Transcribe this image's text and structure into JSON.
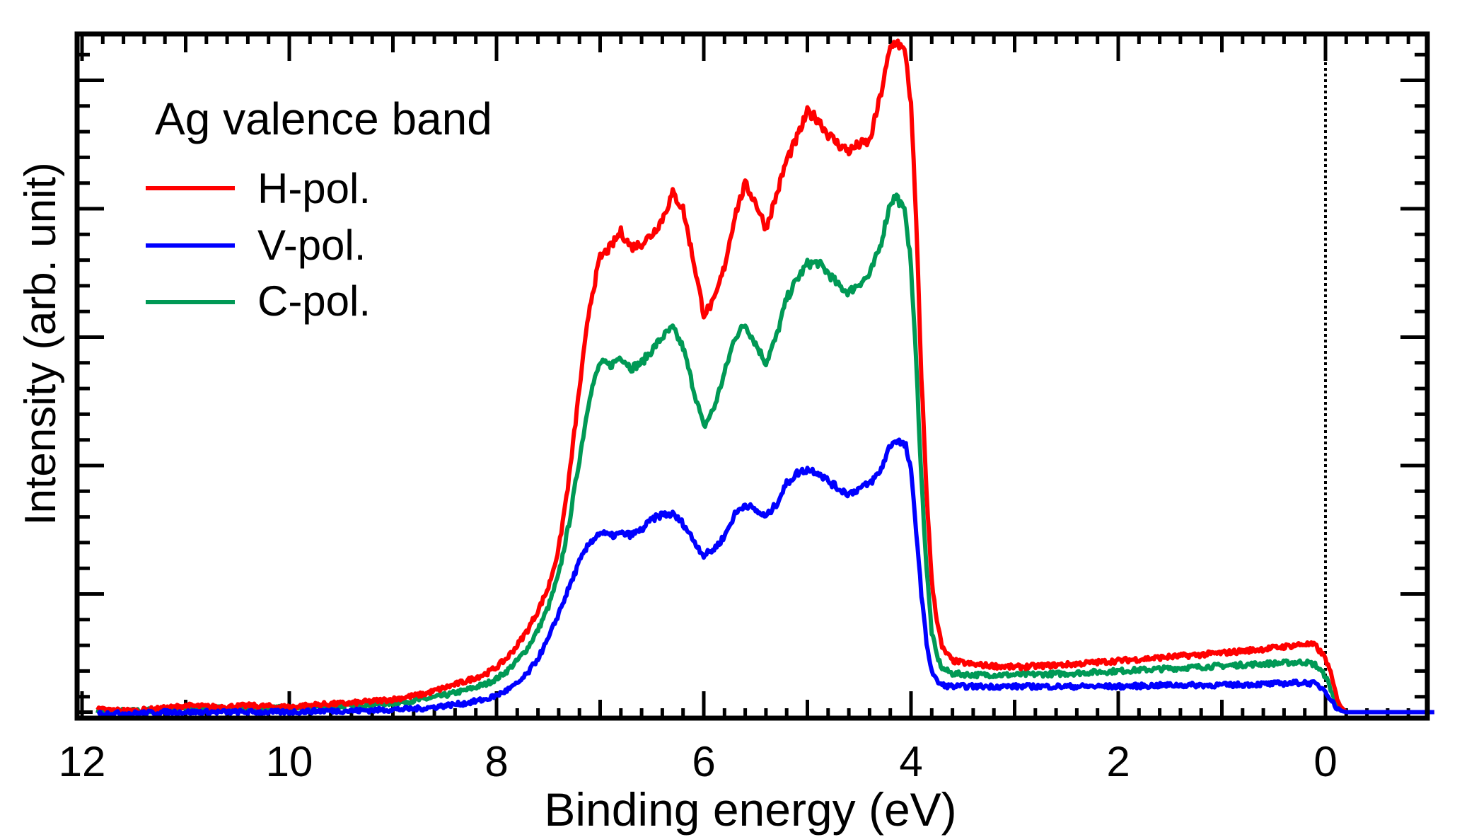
{
  "chart_data": {
    "type": "line",
    "title": "Ag valence band",
    "xlabel": "Binding energy (eV)",
    "ylabel": "Intensity (arb. unit)",
    "xlim": [
      12.05,
      -1.13
    ],
    "ylim": [
      0,
      5.37
    ],
    "x_reversed": true,
    "x_ticks": [
      12,
      10,
      8,
      6,
      4,
      2,
      0
    ],
    "x_tick_labels": [
      "12",
      "10",
      "8",
      "6",
      "4",
      "2",
      "0"
    ],
    "x_minor_step": 0.2,
    "x_mid_step": 1,
    "y_major_ticks": [
      1,
      2,
      3,
      4,
      5
    ],
    "y_minor_step": 0.2,
    "y_tick_labels_shown": false,
    "grid": false,
    "fermi_level_marker": 0,
    "legend": {
      "title": "Ag valence band",
      "placement": "top-left"
    },
    "series": [
      {
        "name": "H-pol.",
        "color": "#ff0000",
        "x": [
          11.85,
          11.5,
          11.2,
          11.0,
          10.7,
          10.4,
          10.0,
          9.7,
          9.4,
          9.0,
          8.7,
          8.5,
          8.3,
          8.1,
          8.0,
          7.9,
          7.8,
          7.7,
          7.6,
          7.5,
          7.4,
          7.3,
          7.2,
          7.1,
          7.0,
          6.9,
          6.8,
          6.7,
          6.6,
          6.5,
          6.4,
          6.3,
          6.2,
          6.1,
          6.0,
          5.9,
          5.8,
          5.7,
          5.6,
          5.5,
          5.4,
          5.3,
          5.2,
          5.1,
          5.0,
          4.9,
          4.8,
          4.7,
          4.6,
          4.5,
          4.4,
          4.3,
          4.2,
          4.14,
          4.05,
          4.0,
          3.95,
          3.9,
          3.85,
          3.8,
          3.75,
          3.7,
          3.6,
          3.4,
          3.0,
          2.5,
          2.0,
          1.5,
          1.0,
          0.5,
          0.2,
          0.1,
          0.0,
          -0.05,
          -0.1,
          -0.15,
          -0.2,
          -0.5,
          -1.05
        ],
        "y": [
          0.1,
          0.09,
          0.11,
          0.13,
          0.12,
          0.13,
          0.12,
          0.14,
          0.15,
          0.18,
          0.22,
          0.27,
          0.32,
          0.38,
          0.43,
          0.5,
          0.6,
          0.72,
          0.87,
          1.05,
          1.35,
          1.9,
          2.6,
          3.25,
          3.62,
          3.7,
          3.82,
          3.7,
          3.73,
          3.8,
          3.92,
          4.12,
          4.0,
          3.6,
          3.18,
          3.28,
          3.55,
          3.95,
          4.19,
          4.05,
          3.85,
          4.1,
          4.38,
          4.55,
          4.75,
          4.7,
          4.58,
          4.5,
          4.45,
          4.5,
          4.52,
          4.86,
          5.25,
          5.31,
          5.2,
          4.8,
          3.9,
          2.7,
          1.8,
          1.1,
          0.8,
          0.58,
          0.48,
          0.45,
          0.43,
          0.45,
          0.48,
          0.51,
          0.54,
          0.58,
          0.61,
          0.6,
          0.5,
          0.38,
          0.22,
          0.12,
          0.08,
          0.08,
          0.08
        ]
      },
      {
        "name": "V-pol.",
        "color": "#0000ff",
        "x": [
          11.85,
          11.5,
          11.2,
          11.0,
          10.7,
          10.4,
          10.0,
          9.7,
          9.4,
          9.0,
          8.7,
          8.5,
          8.3,
          8.1,
          8.0,
          7.9,
          7.8,
          7.7,
          7.6,
          7.5,
          7.4,
          7.3,
          7.2,
          7.1,
          7.0,
          6.9,
          6.8,
          6.7,
          6.6,
          6.5,
          6.4,
          6.3,
          6.2,
          6.1,
          6.0,
          5.9,
          5.8,
          5.7,
          5.6,
          5.5,
          5.4,
          5.3,
          5.2,
          5.1,
          5.0,
          4.9,
          4.8,
          4.7,
          4.6,
          4.5,
          4.4,
          4.3,
          4.2,
          4.14,
          4.05,
          4.0,
          3.95,
          3.9,
          3.85,
          3.8,
          3.75,
          3.7,
          3.6,
          3.4,
          3.0,
          2.5,
          2.0,
          1.5,
          1.0,
          0.5,
          0.2,
          0.1,
          0.0,
          -0.05,
          -0.1,
          -0.15,
          -0.2,
          -0.5,
          -1.05
        ],
        "y": [
          0.07,
          0.07,
          0.08,
          0.08,
          0.08,
          0.08,
          0.08,
          0.09,
          0.09,
          0.1,
          0.11,
          0.13,
          0.15,
          0.18,
          0.21,
          0.25,
          0.3,
          0.38,
          0.5,
          0.65,
          0.85,
          1.05,
          1.25,
          1.4,
          1.48,
          1.45,
          1.47,
          1.46,
          1.5,
          1.58,
          1.62,
          1.62,
          1.55,
          1.42,
          1.3,
          1.35,
          1.45,
          1.62,
          1.7,
          1.65,
          1.6,
          1.7,
          1.86,
          1.94,
          1.97,
          1.95,
          1.88,
          1.82,
          1.78,
          1.82,
          1.86,
          1.95,
          2.16,
          2.2,
          2.15,
          1.95,
          1.5,
          1.0,
          0.62,
          0.4,
          0.32,
          0.29,
          0.28,
          0.28,
          0.28,
          0.28,
          0.28,
          0.29,
          0.29,
          0.3,
          0.31,
          0.3,
          0.25,
          0.18,
          0.12,
          0.09,
          0.08,
          0.08,
          0.08
        ]
      },
      {
        "name": "C-pol.",
        "color": "#009955",
        "x": [
          11.85,
          11.5,
          11.2,
          11.0,
          10.7,
          10.4,
          10.0,
          9.7,
          9.4,
          9.0,
          8.7,
          8.5,
          8.3,
          8.1,
          8.0,
          7.9,
          7.8,
          7.7,
          7.6,
          7.5,
          7.4,
          7.3,
          7.2,
          7.1,
          7.0,
          6.9,
          6.8,
          6.7,
          6.6,
          6.5,
          6.4,
          6.3,
          6.2,
          6.1,
          6.0,
          5.9,
          5.8,
          5.7,
          5.6,
          5.5,
          5.4,
          5.3,
          5.2,
          5.1,
          5.0,
          4.9,
          4.8,
          4.7,
          4.6,
          4.5,
          4.4,
          4.3,
          4.2,
          4.14,
          4.05,
          4.0,
          3.95,
          3.9,
          3.85,
          3.8,
          3.75,
          3.7,
          3.6,
          3.4,
          3.0,
          2.5,
          2.0,
          1.5,
          1.0,
          0.5,
          0.2,
          0.1,
          0.0,
          -0.05,
          -0.1,
          -0.15,
          -0.2,
          -0.5,
          -1.05
        ],
        "y": [
          0.09,
          0.09,
          0.1,
          0.11,
          0.11,
          0.11,
          0.11,
          0.12,
          0.13,
          0.15,
          0.18,
          0.21,
          0.25,
          0.3,
          0.34,
          0.4,
          0.48,
          0.58,
          0.72,
          0.9,
          1.15,
          1.55,
          2.05,
          2.55,
          2.8,
          2.78,
          2.85,
          2.76,
          2.8,
          2.9,
          3.0,
          3.07,
          2.92,
          2.6,
          2.3,
          2.45,
          2.72,
          3.0,
          3.1,
          2.95,
          2.8,
          3.0,
          3.3,
          3.45,
          3.57,
          3.58,
          3.5,
          3.4,
          3.35,
          3.42,
          3.48,
          3.7,
          4.05,
          4.1,
          3.95,
          3.55,
          2.8,
          1.9,
          1.2,
          0.7,
          0.52,
          0.42,
          0.38,
          0.37,
          0.37,
          0.38,
          0.4,
          0.42,
          0.44,
          0.46,
          0.47,
          0.45,
          0.36,
          0.26,
          0.15,
          0.1,
          0.08,
          0.08,
          0.08
        ]
      }
    ]
  }
}
